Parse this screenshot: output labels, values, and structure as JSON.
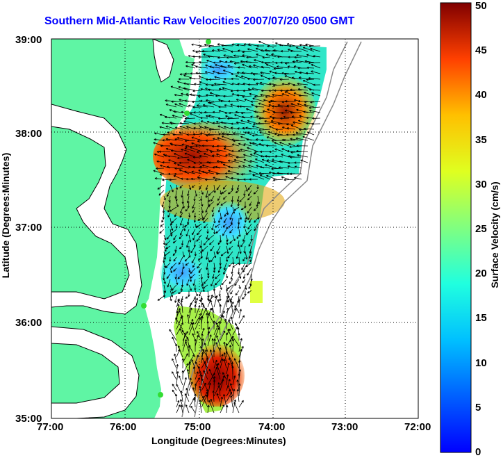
{
  "title": "Southern Mid-Atlantic Raw Velocities 2007/07/20 0500 GMT",
  "xlabel": "Longitude (Degrees:Minutes)",
  "ylabel": "Latitude (Degrees:Minutes)",
  "colorbar": {
    "label": "Surface Velocity (cm/s)",
    "ticks": [
      "0",
      "5",
      "10",
      "15",
      "20",
      "25",
      "30",
      "35",
      "40",
      "45",
      "50"
    ],
    "range": [
      0,
      50
    ]
  },
  "axes": {
    "x_ticks": [
      "77:00",
      "76:00",
      "75:00",
      "74:00",
      "73:00",
      "72:00"
    ],
    "y_ticks": [
      "39:00",
      "38:00",
      "37:00",
      "36:00",
      "35:00"
    ],
    "xlim": [
      "77:00",
      "72:00"
    ],
    "ylim": [
      "35:00",
      "39:00"
    ],
    "grid": true
  },
  "colors": {
    "land": "#5ff5a4",
    "title": "#0000ff",
    "station": "#33dd33"
  }
}
